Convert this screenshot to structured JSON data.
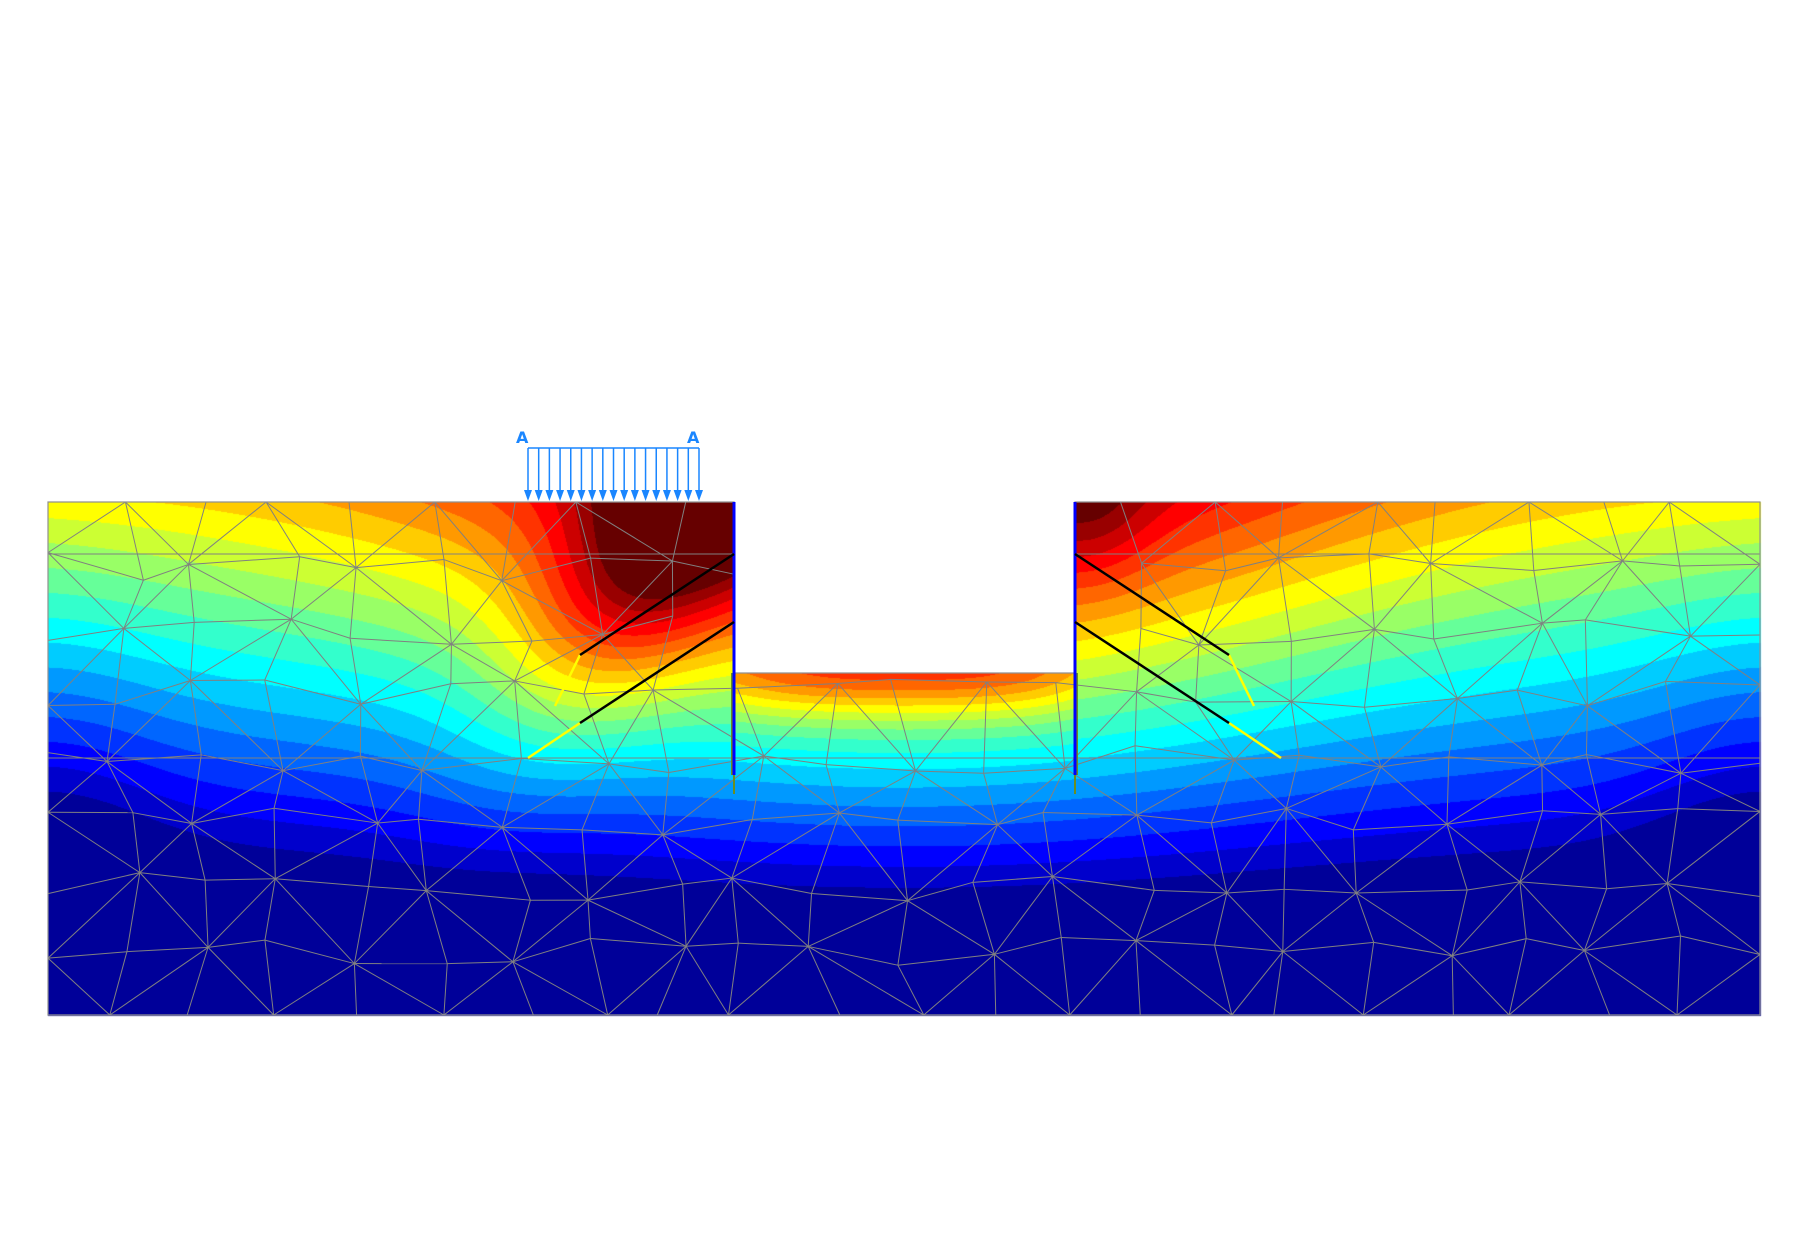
{
  "load": {
    "left_label": "A",
    "right_label": "A",
    "color": "#1a86ff"
  },
  "colors": {
    "wall": "#0000ff",
    "wall_outline": "#6b8e23",
    "anchor_free": "#000000",
    "anchor_grout": "#ffff00",
    "mesh": "#808080",
    "background": "#ffffff"
  },
  "colormap": "jet"
}
